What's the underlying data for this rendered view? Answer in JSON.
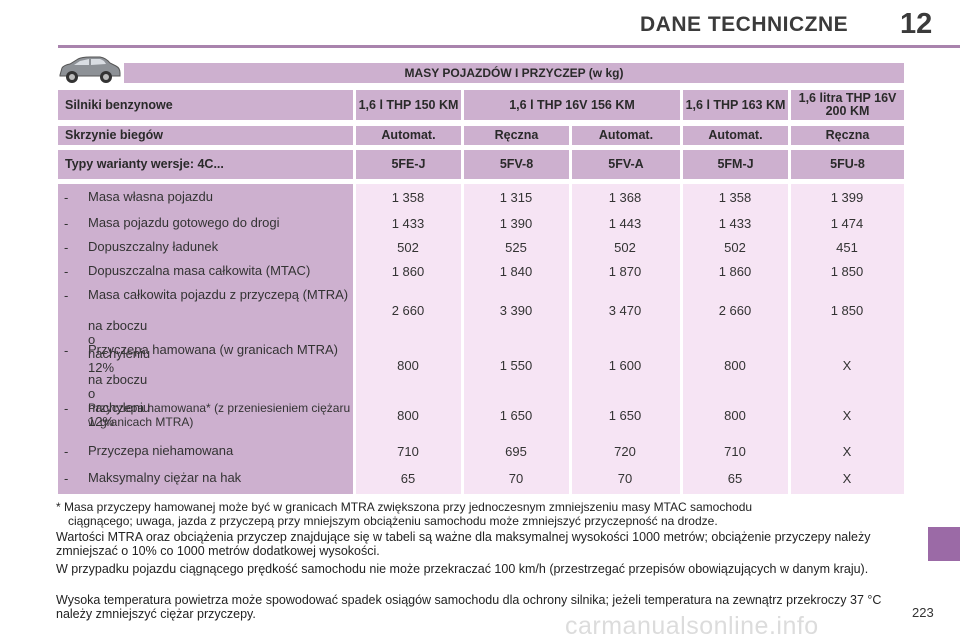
{
  "header": {
    "title": "DANE TECHNICZNE",
    "chapter": "12"
  },
  "section_title": "MASY POJAZDÓW I PRZYCZEP (w kg)",
  "engine_row": {
    "label": "Silniki benzynowe",
    "engines": [
      "1,6 l THP 150 KM",
      "1,6 l THP 16V 156 KM",
      "1,6 l THP 163 KM",
      "1,6 litra THP 16V 200 KM"
    ]
  },
  "gearbox_row": {
    "label": "Skrzynie biegów",
    "values": [
      "Automat.",
      "Ręczna",
      "Automat.",
      "Automat.",
      "Ręczna"
    ]
  },
  "type_row": {
    "label": "Typy warianty wersje: 4C...",
    "values": [
      "5FE-J",
      "5FV-8",
      "5FV-A",
      "5FM-J",
      "5FU-8"
    ]
  },
  "rows": [
    {
      "label": "Masa własna pojazdu",
      "values": [
        "1 358",
        "1 315",
        "1 368",
        "1 358",
        "1 399"
      ]
    },
    {
      "label": "Masa pojazdu gotowego do drogi",
      "values": [
        "1 433",
        "1 390",
        "1 443",
        "1 433",
        "1 474"
      ]
    },
    {
      "label": "Dopuszczalny ładunek",
      "values": [
        "502",
        "525",
        "502",
        "502",
        "451"
      ]
    },
    {
      "label": "Dopuszczalna masa całkowita (MTAC)",
      "values": [
        "1 860",
        "1 840",
        "1 870",
        "1 860",
        "1 850"
      ]
    },
    {
      "label": "Masa całkowita pojazdu z przyczepą (MTRA)",
      "sub": "na zboczu o nachyleniu 12%",
      "values": [
        "2 660",
        "3 390",
        "3 470",
        "2 660",
        "1 850"
      ]
    },
    {
      "label": "Przyczepa hamowana (w granicach MTRA)",
      "sub": "na zboczu o nachyleniu 12%",
      "values": [
        "800",
        "1 550",
        "1 600",
        "800",
        "X"
      ]
    },
    {
      "label": "Przyczepa hamowana* (z przeniesieniem ciężaru w granicach MTRA)",
      "values": [
        "800",
        "1 650",
        "1 650",
        "800",
        "X"
      ]
    },
    {
      "label": "Przyczepa niehamowana",
      "values": [
        "710",
        "695",
        "720",
        "710",
        "X"
      ]
    },
    {
      "label": "Maksymalny ciężar na hak",
      "values": [
        "65",
        "70",
        "70",
        "65",
        "X"
      ]
    }
  ],
  "dash": "-",
  "footnote_1": "* Masa przyczepy hamowanej może być w granicach MTRA zwiększona przy jednoczesnym zmniejszeniu masy MTAC samochodu",
  "footnote_2": "ciągnącego; uwaga, jazda z przyczepą przy mniejszym obciążeniu samochodu może zmniejszyć przyczepność na drodze.",
  "paragraphs": [
    "Wartości MTRA oraz obciążenia przyczep znajdujące się w tabeli są ważne dla maksymalnej wysokości 1000 metrów; obciążenie przyczepy należy zmniejszać o 10% co 1000 metrów dodatkowej wysokości.",
    "W przypadku pojazdu ciągnącego prędkość samochodu nie może przekraczać 100 km/h (przestrzegać przepisów obowiązujących w danym kraju).",
    "Wysoka temperatura powietrza może spowodować spadek osiągów samochodu dla ochrony silnika; jeżeli temperatura na zewnątrz przekroczy 37 °C należy zmniejszyć ciężar przyczepy."
  ],
  "page_number": "223",
  "watermark": "carmanualsonline.info"
}
